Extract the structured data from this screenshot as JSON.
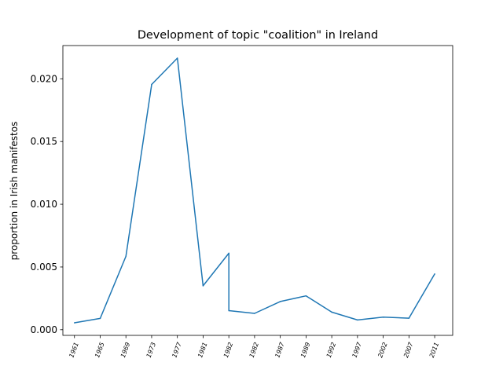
{
  "chart_data": {
    "type": "line",
    "title": "Development of topic \"coalition\" in Ireland",
    "xlabel": "",
    "ylabel": "proportion in Irish manifestos",
    "categories": [
      "1961",
      "1965",
      "1969",
      "1973",
      "1977",
      "1981",
      "1982",
      "1982",
      "1987",
      "1989",
      "1992",
      "1997",
      "2002",
      "2007",
      "2011"
    ],
    "x": [
      0,
      1,
      2,
      3,
      4,
      5,
      6,
      6,
      7,
      8,
      9,
      10,
      11,
      12,
      13,
      14
    ],
    "y": [
      0.00055,
      0.0009,
      0.00585,
      0.01955,
      0.02165,
      0.0035,
      0.0061,
      0.00152,
      0.0013,
      0.00225,
      0.0027,
      0.0014,
      0.00078,
      0.001,
      0.00092,
      0.00445
    ],
    "yticks": [
      "0.000",
      "0.005",
      "0.010",
      "0.015",
      "0.020"
    ],
    "ytick_values": [
      0,
      0.005,
      0.01,
      0.015,
      0.02
    ],
    "xlim": [
      -0.45,
      14.7
    ],
    "ylim": [
      -0.00045,
      0.02265
    ],
    "grid": false,
    "line_color": "#1f77b4"
  }
}
